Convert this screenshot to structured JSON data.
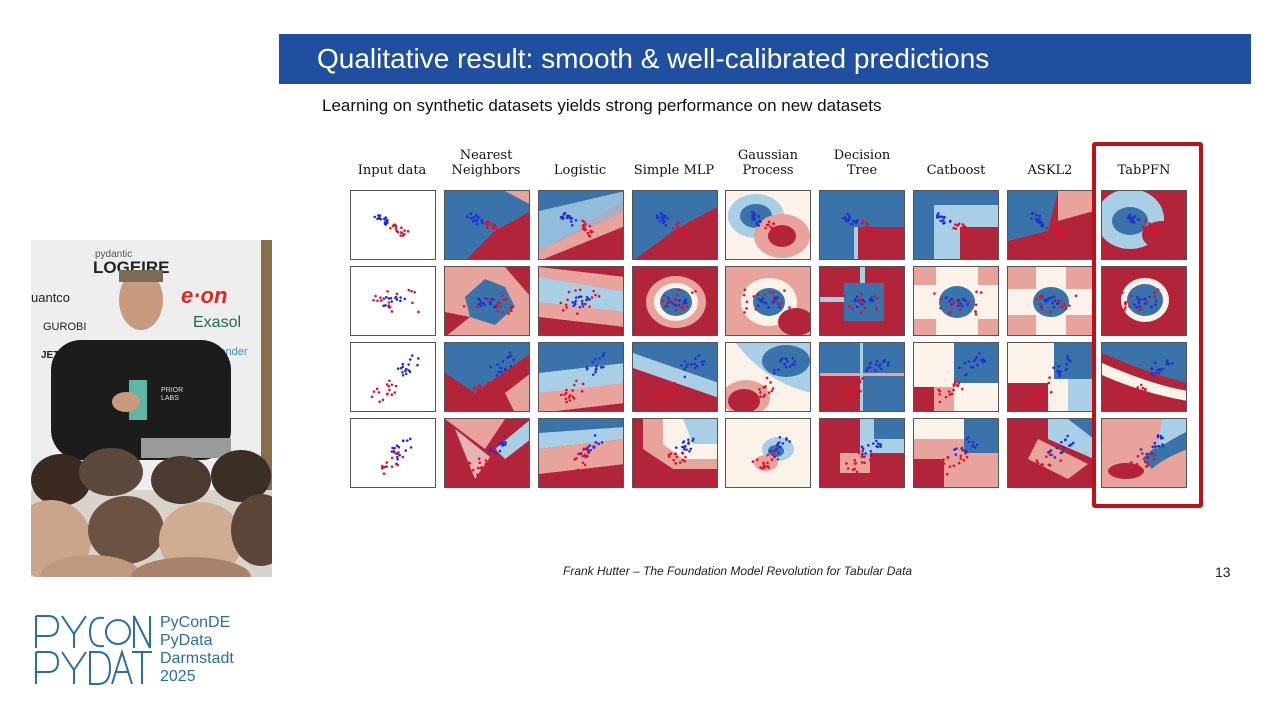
{
  "slide": {
    "title": "Qualitative result: smooth & well-calibrated predictions",
    "subtitle": "Learning on synthetic datasets yields strong performance on new datasets",
    "footer": "Frank Hutter  –  The Foundation Model Revolution for Tabular Data",
    "page_number": "13",
    "columns": [
      {
        "line1": "",
        "line2": "Input data"
      },
      {
        "line1": "Nearest",
        "line2": "Neighbors"
      },
      {
        "line1": "",
        "line2": "Logistic"
      },
      {
        "line1": "",
        "line2": "Simple MLP"
      },
      {
        "line1": "Gaussian",
        "line2": "Process"
      },
      {
        "line1": "Decision",
        "line2": "Tree"
      },
      {
        "line1": "",
        "line2": "Catboost"
      },
      {
        "line1": "",
        "line2": "ASKL2"
      },
      {
        "line1": "",
        "line2": "TabPFN"
      }
    ],
    "highlighted_column": "TabPFN"
  },
  "video": {
    "sponsor_logos": [
      "pydantic",
      "LOGEIRE",
      "e·on",
      "quantco",
      "GUROBI",
      "Exasol",
      "JETBRAINS",
      "BlueYonder",
      "PRIOR LABS"
    ]
  },
  "conference": {
    "line1": "PyConDE",
    "line2": "PyData",
    "line3": "Darmstadt",
    "line4": "2025"
  },
  "colors": {
    "title_bar": "#1f4f9e",
    "highlight": "#c0101a",
    "class_red": "#b2243a",
    "class_blue": "#3a72aa",
    "logo": "#2b6ea6"
  }
}
